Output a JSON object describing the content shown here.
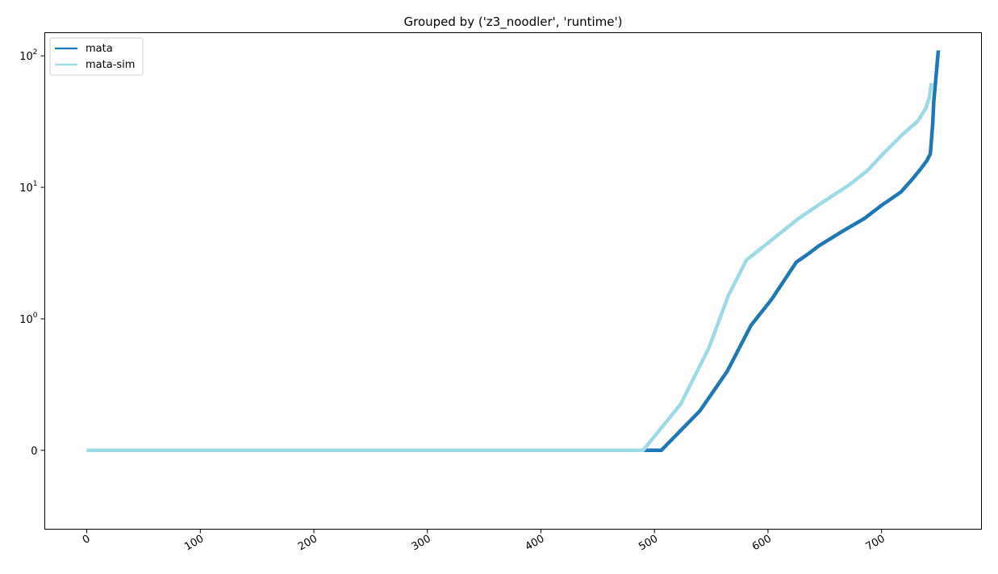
{
  "chart_data": {
    "type": "line",
    "title": "Grouped by ('z3_noodler', 'runtime')",
    "xlabel": "",
    "ylabel": "",
    "xlim": [
      -37,
      788
    ],
    "ylim": [
      -0.6,
      150
    ],
    "yscale": "symlog",
    "symlog_linthresh": 1,
    "grid": false,
    "legend_position": "top-left",
    "x_ticks": [
      0,
      100,
      200,
      300,
      400,
      500,
      600,
      700
    ],
    "x_tick_labels": [
      "0",
      "100",
      "200",
      "300",
      "400",
      "500",
      "600",
      "700"
    ],
    "x_tick_rotation": 30,
    "y_ticks": [
      {
        "value": 0,
        "base": "0",
        "exp": ""
      },
      {
        "value": 1,
        "base": "10",
        "exp": "0"
      },
      {
        "value": 10,
        "base": "10",
        "exp": "1"
      },
      {
        "value": 100,
        "base": "10",
        "exp": "2"
      }
    ],
    "series": [
      {
        "name": "mata",
        "color": "#1f77b4",
        "x": [
          0,
          490,
          506,
          540,
          564,
          585,
          603,
          625,
          635,
          645,
          665,
          685,
          700,
          717,
          727,
          735,
          740,
          743,
          745,
          746,
          748,
          750
        ],
        "y": [
          0,
          0,
          0,
          0.3,
          0.6,
          0.95,
          1.4,
          2.7,
          3.1,
          3.6,
          4.6,
          5.8,
          7.3,
          9.2,
          11.5,
          14,
          16,
          18,
          30,
          45,
          70,
          110
        ]
      },
      {
        "name": "mata-sim",
        "color": "#9edae5",
        "x": [
          0,
          490,
          523,
          548,
          565,
          581,
          602,
          615,
          627,
          647,
          672,
          688,
          700,
          718,
          732,
          739,
          742,
          744
        ],
        "y": [
          0,
          0,
          0.35,
          0.78,
          1.5,
          2.8,
          3.9,
          4.8,
          5.8,
          7.6,
          10.5,
          13.5,
          17.5,
          25,
          32,
          40,
          48,
          62
        ]
      }
    ]
  }
}
